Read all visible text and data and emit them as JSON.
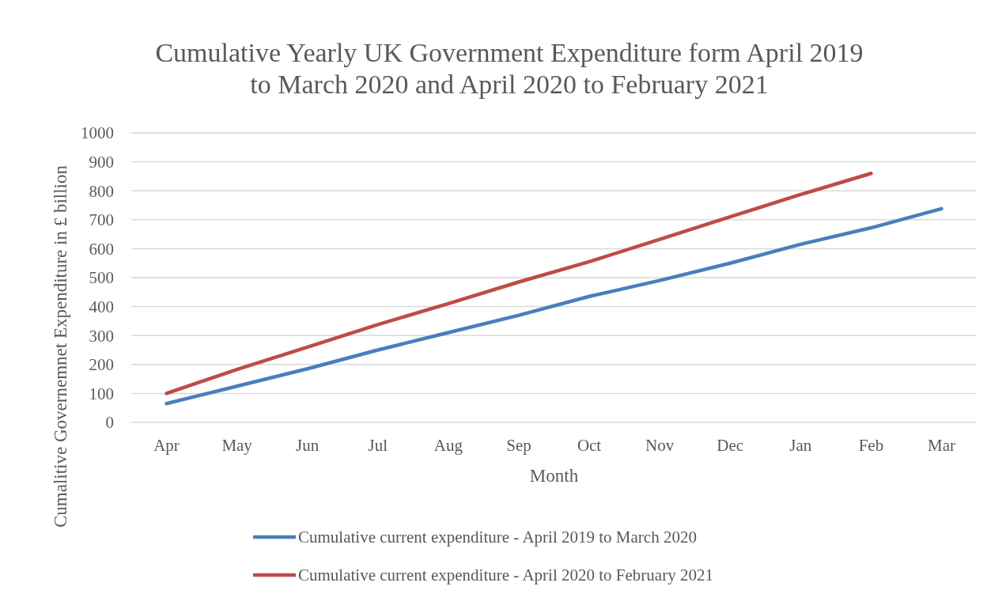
{
  "chart_data": {
    "type": "line",
    "title": "Cumulative Yearly UK Government Expenditure form April 2019\nto March 2020 and April 2020 to February 2021",
    "xlabel": "Month",
    "ylabel": "Cumalitive Governemnet Expenditure in £ billion",
    "categories": [
      "Apr",
      "May",
      "Jun",
      "Jul",
      "Aug",
      "Sep",
      "Oct",
      "Nov",
      "Dec",
      "Jan",
      "Feb",
      "Mar"
    ],
    "series": [
      {
        "name": "Cumulative current expenditure - April 2019 to March 2020",
        "color": "#4a7ebb",
        "values": [
          65,
          125,
          185,
          250,
          310,
          370,
          435,
          490,
          550,
          615,
          672,
          738
        ]
      },
      {
        "name": "Cumulative current expenditure - April 2020 to February 2021",
        "color": "#be4b48",
        "values": [
          100,
          183,
          260,
          338,
          410,
          485,
          555,
          632,
          710,
          787,
          860,
          null
        ]
      }
    ],
    "ylim": [
      0,
      1000
    ],
    "yticks": [
      0,
      100,
      200,
      300,
      400,
      500,
      600,
      700,
      800,
      900,
      1000
    ],
    "grid": "y",
    "legend": "bottom",
    "marker": "none",
    "line_style": "solid"
  }
}
